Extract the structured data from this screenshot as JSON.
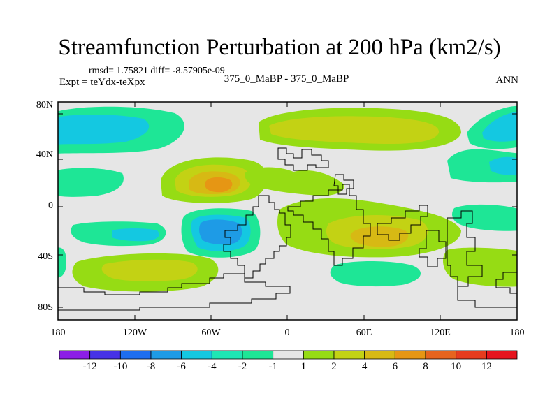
{
  "title": "Streamfunction Perturbation at 200 hPa (km2/s)",
  "stats": "rmsd= 1.75821 diff= -8.57905e-09",
  "experiment": "Expt = teYdx-teXpx",
  "case_label": "375_0_MaBP - 375_0_MaBP",
  "season": "ANN",
  "map": {
    "lon_range": [
      -180,
      180
    ],
    "lat_range": [
      -90,
      90
    ],
    "lat_ticks": [
      {
        "value": 80,
        "label": "80N"
      },
      {
        "value": 40,
        "label": "40N"
      },
      {
        "value": 0,
        "label": "0"
      },
      {
        "value": -40,
        "label": "40S"
      },
      {
        "value": -80,
        "label": "80S"
      }
    ],
    "lon_ticks": [
      {
        "value": -180,
        "label": "180"
      },
      {
        "value": -120,
        "label": "120W"
      },
      {
        "value": -60,
        "label": "60W"
      },
      {
        "value": 0,
        "label": "0"
      },
      {
        "value": 60,
        "label": "60E"
      },
      {
        "value": 120,
        "label": "120E"
      },
      {
        "value": 180,
        "label": "180"
      }
    ]
  },
  "colorbar": {
    "labels": [
      "-12",
      "-10",
      "-8",
      "-6",
      "-4",
      "-2",
      "-1",
      "1",
      "2",
      "4",
      "6",
      "8",
      "10",
      "12"
    ],
    "colors": [
      "#8c1ee6",
      "#4632e6",
      "#1e6ef0",
      "#1e9be6",
      "#14c8e1",
      "#1ee6b4",
      "#1ee696",
      "#e6e6e6",
      "#96dc14",
      "#c3d214",
      "#d7b914",
      "#e69614",
      "#e6641e",
      "#e63c1e",
      "#e6141e"
    ]
  }
}
